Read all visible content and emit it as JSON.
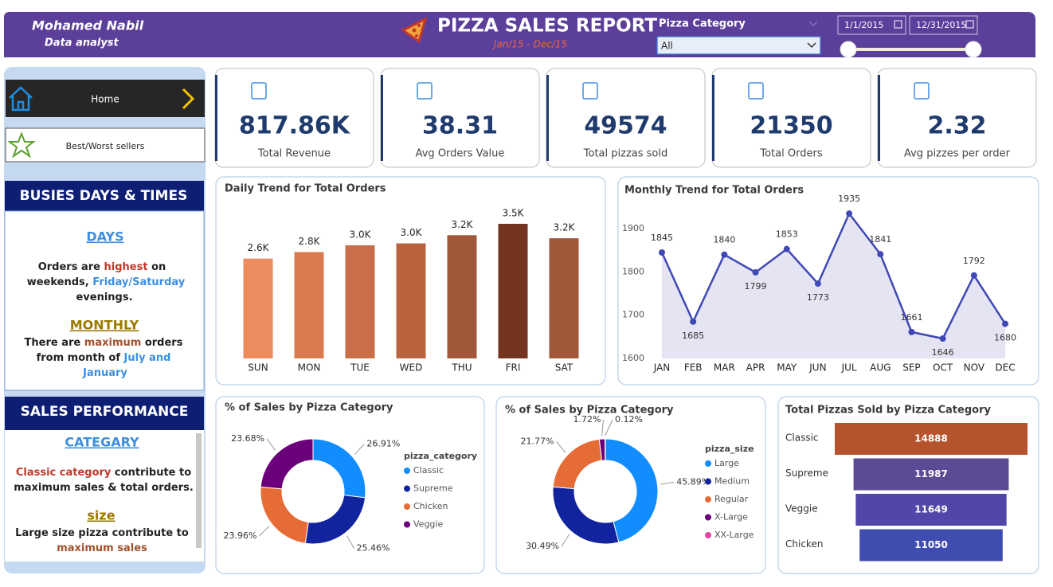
{
  "header": {
    "name": "Mohamed Nabil",
    "role": "Data analyst",
    "title": "PIZZA SALES REPORT",
    "subtitle": "Jan/15 - Dec/15",
    "filter_label": "Pizza Category",
    "filter_value": "All",
    "date_start": "1/1/2015",
    "date_end": "12/31/2015"
  },
  "nav": {
    "home": "Home",
    "sellers": "Best/Worst sellers"
  },
  "kpis": [
    {
      "value": "817.86K",
      "label": "Total Revenue"
    },
    {
      "value": "38.31",
      "label": "Avg Orders Value"
    },
    {
      "value": "49574",
      "label": "Total pizzas sold"
    },
    {
      "value": "21350",
      "label": "Total Orders"
    },
    {
      "value": "2.32",
      "label": "Avg pizzes per order"
    }
  ],
  "sidebar": {
    "busiest": {
      "title": "BUSIES DAYS & TIMES",
      "days": {
        "heading": "DAYS",
        "lines": [
          [
            "Orders are ",
            "highest",
            " on"
          ],
          [
            "weekends, ",
            "Friday/Saturday"
          ],
          [
            "evenings."
          ]
        ]
      },
      "monthly": {
        "heading": "MONTHLY",
        "lines": [
          [
            "There are ",
            "maximum",
            " orders"
          ],
          [
            "from month of ",
            "July and"
          ],
          [
            "January"
          ]
        ]
      }
    },
    "performance": {
      "title": "SALES PERFORMANCE",
      "category": {
        "heading": "CATEGARY",
        "lines": [
          [
            "Classic category",
            " contribute to"
          ],
          [
            "maximum sales & total orders."
          ]
        ]
      },
      "size": {
        "heading": "size",
        "lines": [
          [
            "Large size pizza contribute to"
          ],
          [
            "maximum sales"
          ]
        ]
      }
    }
  },
  "chart_data": [
    {
      "type": "bar",
      "title": "Daily Trend for Total Orders",
      "categories": [
        "SUN",
        "MON",
        "TUE",
        "WED",
        "THU",
        "FRI",
        "SAT"
      ],
      "values": [
        2624,
        2794,
        2973,
        3024,
        3239,
        3538,
        3158
      ],
      "value_labels": [
        "2.6K",
        "2.8K",
        "3.0K",
        "3.0K",
        "3.2K",
        "3.5K",
        "3.2K"
      ],
      "colors": [
        "#ec8b5e",
        "#d97a4f",
        "#c96e48",
        "#b9643f",
        "#a1573a",
        "#73351f",
        "#a0573a"
      ]
    },
    {
      "type": "line",
      "title": "Monthly Trend for Total Orders",
      "categories": [
        "JAN",
        "FEB",
        "MAR",
        "APR",
        "MAY",
        "JUN",
        "JUL",
        "AUG",
        "SEP",
        "OCT",
        "NOV",
        "DEC"
      ],
      "values": [
        1845,
        1685,
        1840,
        1799,
        1853,
        1773,
        1935,
        1841,
        1661,
        1646,
        1792,
        1680
      ],
      "ylim": [
        1600,
        1950
      ],
      "yticks": [
        1600,
        1700,
        1800,
        1900
      ],
      "color": "#4048b5",
      "area_color": "#e4e4f2"
    },
    {
      "type": "pie",
      "title": "% of Sales by Pizza Category",
      "legend_title": "pizza_category",
      "categories": [
        "Classic",
        "Supreme",
        "Chicken",
        "Veggie"
      ],
      "values": [
        26.91,
        25.46,
        23.96,
        23.68
      ],
      "value_labels": [
        "26.91%",
        "25.46%",
        "23.96%",
        "23.68%"
      ],
      "colors": [
        "#118dff",
        "#12239e",
        "#e66c37",
        "#6b007b"
      ]
    },
    {
      "type": "pie",
      "title": "% of Sales by Pizza Category",
      "legend_title": "pizza_size",
      "categories": [
        "Large",
        "Medium",
        "Regular",
        "X-Large",
        "XX-Large"
      ],
      "values": [
        45.89,
        30.49,
        21.77,
        1.72,
        0.12
      ],
      "value_labels": [
        "45.89%",
        "30.49%",
        "21.77%",
        "1.72%",
        "0.12%"
      ],
      "colors": [
        "#118dff",
        "#12239e",
        "#e66c37",
        "#6b007b",
        "#e044a7"
      ]
    },
    {
      "type": "funnel",
      "title": "Total Pizzas Sold by Pizza Category",
      "categories": [
        "Classic",
        "Supreme",
        "Veggie",
        "Chicken"
      ],
      "values": [
        14888,
        11987,
        11649,
        11050
      ],
      "colors": [
        "#b5532d",
        "#5c4b94",
        "#5247a8",
        "#3f4db0"
      ]
    }
  ]
}
